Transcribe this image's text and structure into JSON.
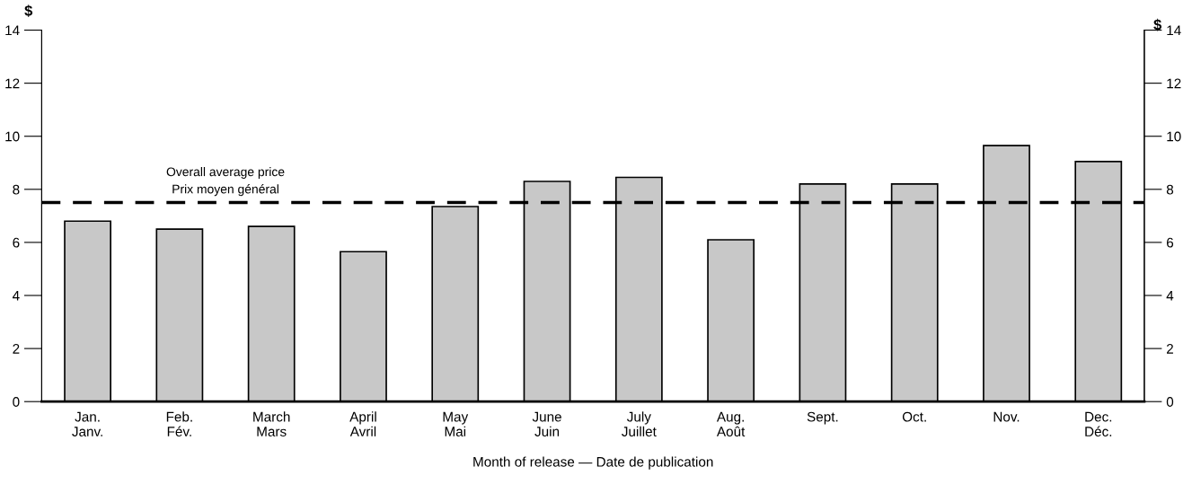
{
  "chart_data": {
    "type": "bar",
    "categories": [
      "Jan.\nJanv.",
      "Feb.\nFév.",
      "March\nMars",
      "April\nAvril",
      "May\nMai",
      "June\nJuin",
      "July\nJuillet",
      "Aug.\nAoût",
      "Sept.",
      "Oct.",
      "Nov.",
      "Dec.\nDéc."
    ],
    "values": [
      6.8,
      6.5,
      6.6,
      5.65,
      7.35,
      8.3,
      8.45,
      6.1,
      8.2,
      8.2,
      9.65,
      9.05
    ],
    "color": "#c8c8c8",
    "xlabel": "Month of release — Date de publication",
    "ylabel": "$",
    "y2label": "$",
    "ylim": [
      0,
      14
    ],
    "yticks": [
      0,
      2,
      4,
      6,
      8,
      10,
      12,
      14
    ],
    "y2lim": [
      0,
      14
    ],
    "y2ticks": [
      0,
      2,
      4,
      6,
      8,
      10,
      12,
      14
    ],
    "ref_lines": [
      {
        "axis": "y",
        "value": 7.5,
        "label": "Overall average price\nPrix moyen général",
        "color": "#000000",
        "line_style": "dashed"
      }
    ],
    "grid": false
  }
}
